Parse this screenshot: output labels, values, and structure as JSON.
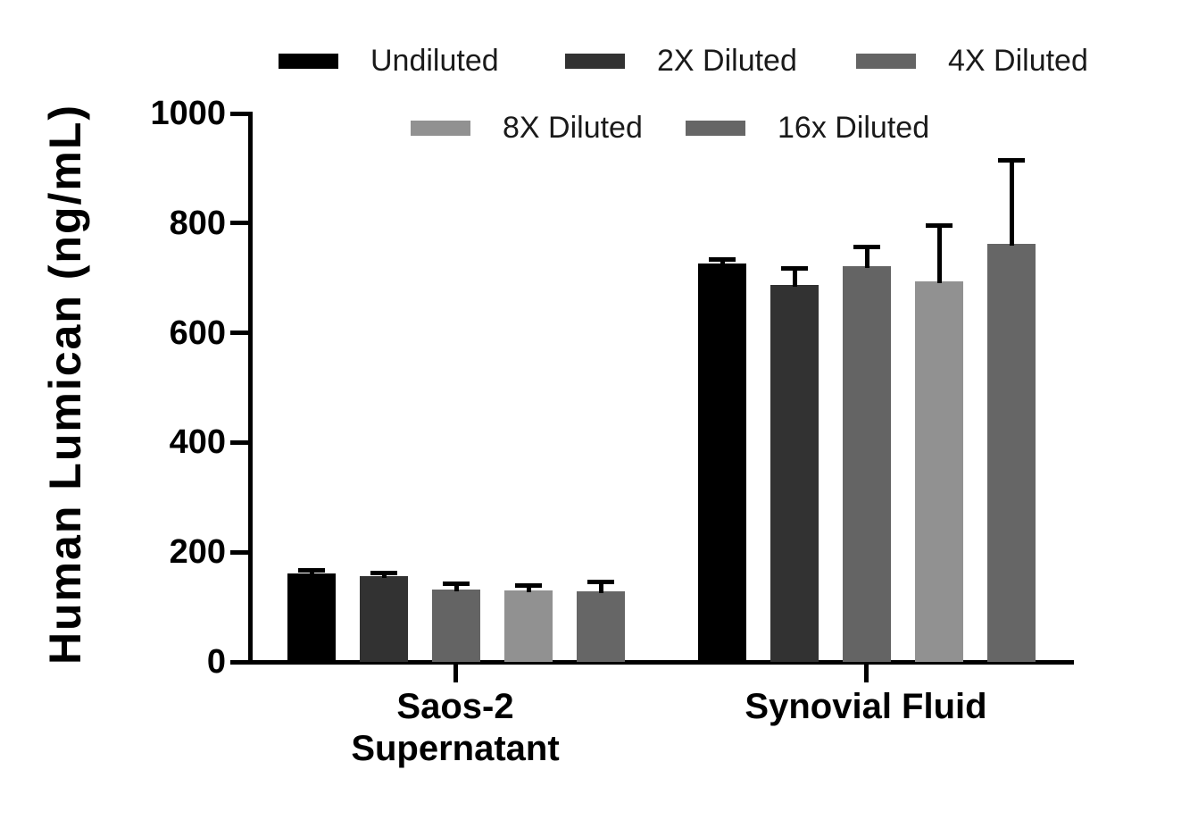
{
  "chart_data": {
    "type": "bar",
    "title": "",
    "ylabel": "Human Lumican (ng/mL)",
    "xlabel": "",
    "ylim": [
      0,
      1000
    ],
    "yticks": [
      0,
      200,
      400,
      600,
      800,
      1000
    ],
    "grid": false,
    "legend_position": "top",
    "error_bars": "sd, upper only, black caps",
    "categories": [
      "Saos-2\nSupernatant",
      "Synovial Fluid"
    ],
    "series": [
      {
        "name": "Undiluted",
        "color": "#000000",
        "values": [
          162,
          727
        ],
        "sd": [
          5,
          7
        ]
      },
      {
        "name": "2X Diluted",
        "color": "#323232",
        "values": [
          156,
          688
        ],
        "sd": [
          6,
          30
        ]
      },
      {
        "name": "4X Diluted",
        "color": "#646464",
        "values": [
          132,
          722
        ],
        "sd": [
          10,
          35
        ]
      },
      {
        "name": "8X Diluted",
        "color": "#919191",
        "values": [
          131,
          693
        ],
        "sd": [
          9,
          103
        ]
      },
      {
        "name": "16x Diluted",
        "color": "#666666",
        "values": [
          129,
          763
        ],
        "sd": [
          17,
          151
        ]
      }
    ],
    "axis_color": "#000000",
    "error_bar_color": "#000000"
  }
}
